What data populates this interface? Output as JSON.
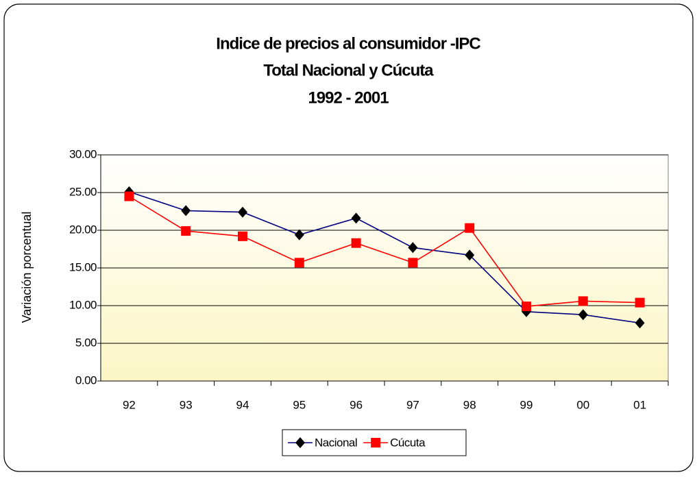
{
  "chart_data": {
    "type": "line",
    "title": [
      "Indice de precios al consumidor -IPC",
      "Total Nacional y Cúcuta",
      "1992 - 2001"
    ],
    "y_label": "Variación porcentual",
    "categories": [
      "92",
      "93",
      "94",
      "95",
      "96",
      "97",
      "98",
      "99",
      "00",
      "01"
    ],
    "series": [
      {
        "name": "Nacional",
        "color": "#000080",
        "marker_color": "#000000",
        "marker": "diamond",
        "values": [
          25.1,
          22.6,
          22.4,
          19.4,
          21.6,
          17.7,
          16.7,
          9.2,
          8.8,
          7.7
        ]
      },
      {
        "name": "Cúcuta",
        "color": "#ff0000",
        "marker_color": "#ff0000",
        "marker": "square",
        "values": [
          24.5,
          19.9,
          19.2,
          15.7,
          18.3,
          15.7,
          20.3,
          9.9,
          10.6,
          10.4
        ]
      }
    ],
    "ylim": [
      0,
      30
    ],
    "yticks": [
      {
        "value": 0,
        "label": "0.00"
      },
      {
        "value": 5,
        "label": "5.00"
      },
      {
        "value": 10,
        "label": "10.00"
      },
      {
        "value": 15,
        "label": "15.00"
      },
      {
        "value": 20,
        "label": "20.00"
      },
      {
        "value": 25,
        "label": "25.00"
      },
      {
        "value": 30,
        "label": "30.00"
      }
    ],
    "grid": true,
    "legend": "bottom"
  }
}
